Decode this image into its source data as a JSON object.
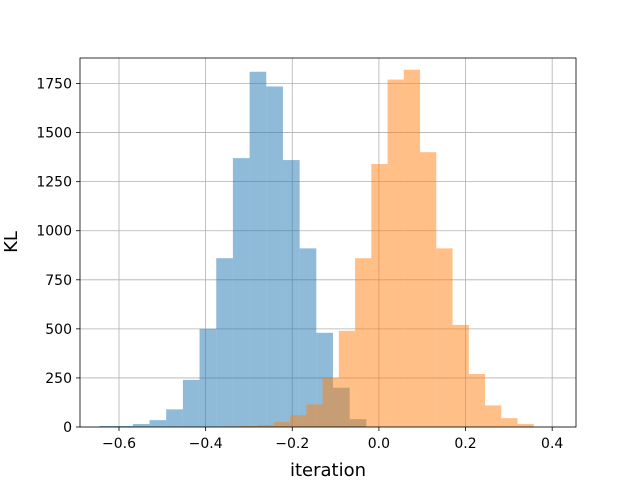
{
  "chart_data": {
    "type": "bar",
    "subtype": "overlapping histogram",
    "title": "",
    "xlabel": "iteration",
    "ylabel": "KL",
    "xlim": [
      -0.69,
      0.455
    ],
    "ylim": [
      0,
      1880
    ],
    "x_ticks": [
      -0.6,
      -0.4,
      -0.2,
      0.0,
      0.2,
      0.4
    ],
    "x_tick_labels": [
      "−0.6",
      "−0.4",
      "−0.2",
      "0.0",
      "0.2",
      "0.4"
    ],
    "y_ticks": [
      0,
      250,
      500,
      750,
      1000,
      1250,
      1500,
      1750
    ],
    "y_tick_labels": [
      "0",
      "250",
      "500",
      "750",
      "1000",
      "1250",
      "1500",
      "1750"
    ],
    "grid": true,
    "legend": "none",
    "series": [
      {
        "color": "#1f77b4",
        "opacity": 0.5,
        "bin_edges": [
          -0.645,
          -0.6065,
          -0.568,
          -0.5295,
          -0.491,
          -0.4525,
          -0.414,
          -0.3755,
          -0.337,
          -0.2985,
          -0.26,
          -0.2215,
          -0.183,
          -0.1445,
          -0.106,
          -0.0675,
          -0.029
        ],
        "counts": [
          5,
          5,
          15,
          35,
          90,
          240,
          500,
          860,
          1370,
          1810,
          1735,
          1360,
          910,
          480,
          200,
          40
        ]
      },
      {
        "color": "#ff7f0e",
        "opacity": 0.5,
        "bin_edges": [
          -0.355,
          -0.3175,
          -0.28,
          -0.2425,
          -0.205,
          -0.1675,
          -0.13,
          -0.0925,
          -0.055,
          -0.0175,
          0.02,
          0.0575,
          0.095,
          0.1325,
          0.17,
          0.2075,
          0.245,
          0.2825,
          0.32,
          0.3575
        ],
        "counts": [
          3,
          5,
          10,
          25,
          60,
          115,
          250,
          490,
          860,
          1340,
          1770,
          1820,
          1400,
          910,
          520,
          270,
          110,
          45,
          15
        ]
      }
    ]
  }
}
